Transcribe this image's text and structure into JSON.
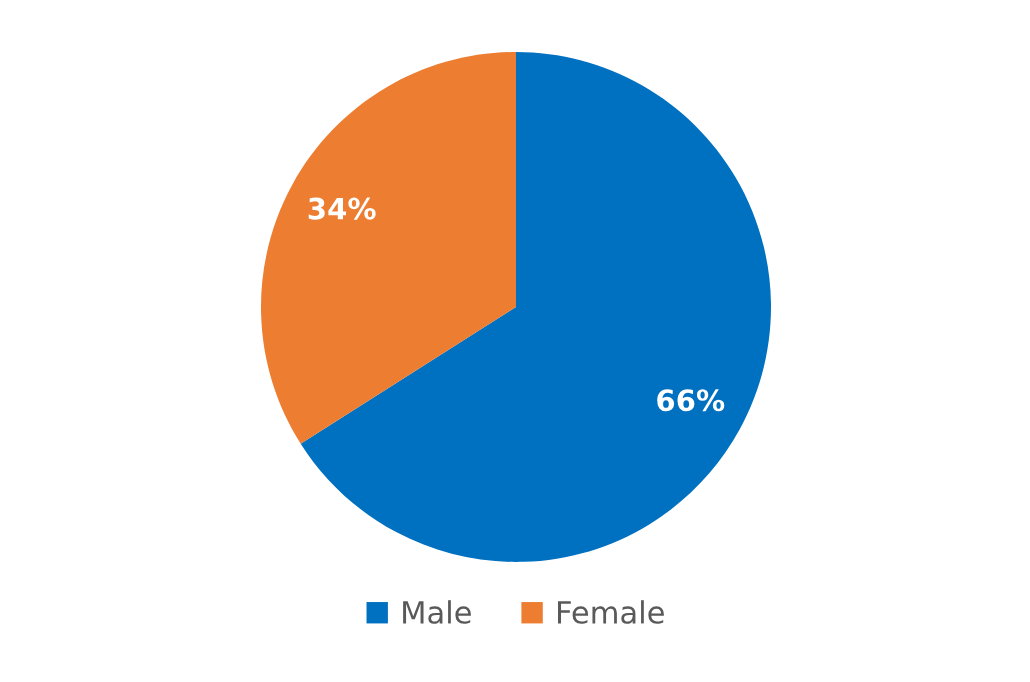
{
  "chart_data": {
    "type": "pie",
    "categories": [
      "Male",
      "Female"
    ],
    "values": [
      66,
      34
    ],
    "colors": [
      "#0070c0",
      "#ed7d31"
    ],
    "value_labels": [
      "66%",
      "34%"
    ],
    "legend": "bottom"
  }
}
